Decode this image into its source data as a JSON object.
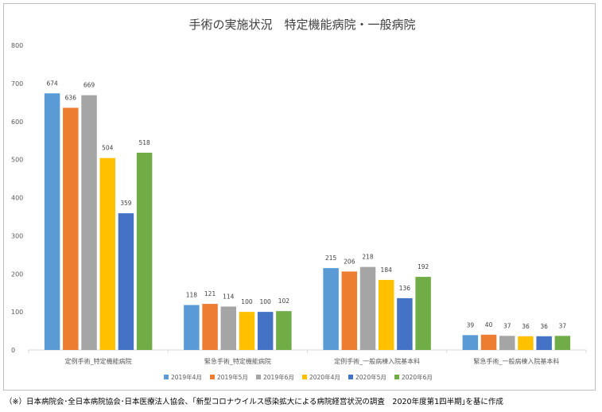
{
  "chart_data": {
    "type": "bar",
    "title": "手術の実施状況　特定機能病院・一般病院",
    "xlabel": "",
    "ylabel": "",
    "ylim": [
      0,
      800
    ],
    "yticks": [
      0,
      100,
      200,
      300,
      400,
      500,
      600,
      700,
      800
    ],
    "grid": false,
    "legend_position": "bottom",
    "categories": [
      "定例手術_特定機能病院",
      "緊急手術_特定機能病院",
      "定例手術_一般病棟入院基本料",
      "緊急手術_一般病棟入院基本料"
    ],
    "series": [
      {
        "name": "2019年4月",
        "color": "#5b9bd5",
        "values": [
          674,
          118,
          215,
          39
        ]
      },
      {
        "name": "2019年5月",
        "color": "#ed7d31",
        "values": [
          636,
          121,
          206,
          40
        ]
      },
      {
        "name": "2019年6月",
        "color": "#a5a5a5",
        "values": [
          669,
          114,
          218,
          37
        ]
      },
      {
        "name": "2020年4月",
        "color": "#ffc000",
        "values": [
          504,
          100,
          184,
          36
        ]
      },
      {
        "name": "2020年5月",
        "color": "#4472c4",
        "values": [
          359,
          100,
          136,
          36
        ]
      },
      {
        "name": "2020年6月",
        "color": "#70ad47",
        "values": [
          518,
          102,
          192,
          37
        ]
      }
    ]
  },
  "footnote": "（※）日本病院会･全日本病院協会･日本医療法人協会、｢新型コロナウイルス感染拡大による病院経営状況の調査　2020年度第1四半期｣を基に作成"
}
